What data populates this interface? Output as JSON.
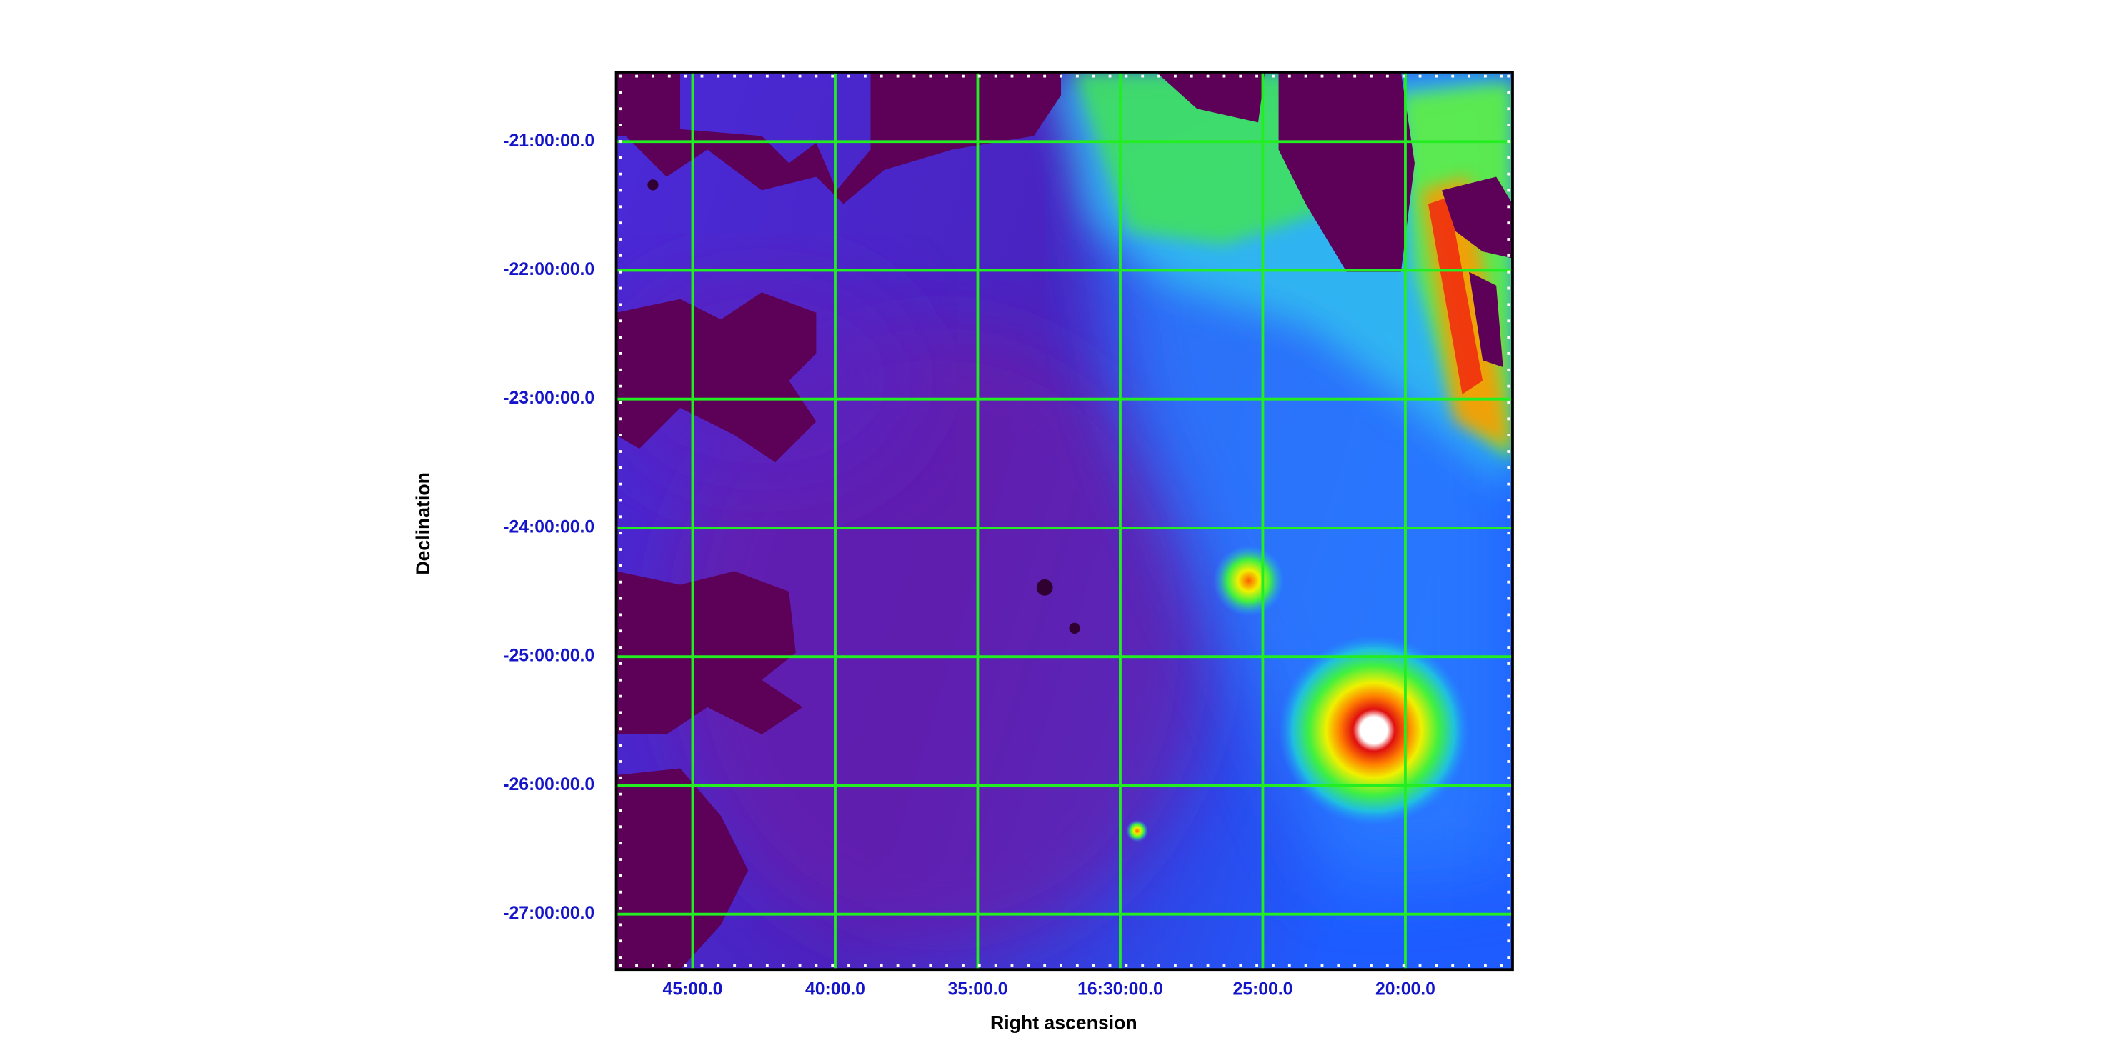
{
  "chart_data": {
    "type": "image",
    "xlabel": "Right ascension",
    "ylabel": "Declination",
    "xlim": [
      251.92,
      244.06
    ],
    "ylim": [
      -27.43,
      -20.46
    ],
    "xticks": [
      {
        "value": 251.25,
        "label": "45:00.0"
      },
      {
        "value": 250.0,
        "label": "40:00.0"
      },
      {
        "value": 248.75,
        "label": "35:00.0"
      },
      {
        "value": 247.5,
        "label": "16:30:00.0"
      },
      {
        "value": 246.25,
        "label": "25:00.0"
      },
      {
        "value": 245.0,
        "label": "20:00.0"
      }
    ],
    "yticks": [
      {
        "value": -21,
        "label": "-21:00:00.0"
      },
      {
        "value": -22,
        "label": "-22:00:00.0"
      },
      {
        "value": -23,
        "label": "-23:00:00.0"
      },
      {
        "value": -24,
        "label": "-24:00:00.0"
      },
      {
        "value": -25,
        "label": "-25:00:00.0"
      },
      {
        "value": -26,
        "label": "-26:00:00.0"
      },
      {
        "value": -27,
        "label": "-27:00:00.0"
      }
    ],
    "grid": true,
    "grid_color": "#22ee22"
  }
}
